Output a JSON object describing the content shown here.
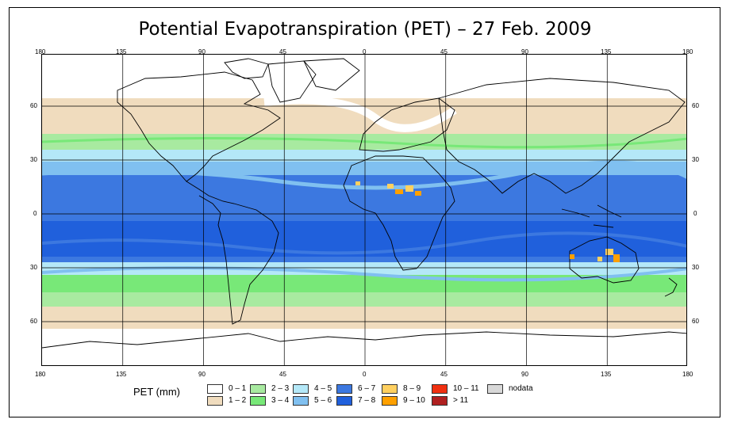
{
  "title": "Potential Evapotranspiration (PET) – 27 Feb. 2009",
  "longitude_ticks": [
    "180",
    "135",
    "90",
    "45",
    "0",
    "45",
    "90",
    "135",
    "180"
  ],
  "latitude_ticks": [
    "60",
    "30",
    "0",
    "30",
    "60"
  ],
  "legend": {
    "title": "PET (mm)",
    "classes": [
      {
        "label": "0 – 1",
        "color": "#ffffff"
      },
      {
        "label": "1 – 2",
        "color": "#f0dcbe"
      },
      {
        "label": "2 – 3",
        "color": "#a8eaa0"
      },
      {
        "label": "3 – 4",
        "color": "#78e878"
      },
      {
        "label": "4 – 5",
        "color": "#b4e8f8"
      },
      {
        "label": "5 – 6",
        "color": "#80c0f0"
      },
      {
        "label": "6 – 7",
        "color": "#3c78e0"
      },
      {
        "label": "7 – 8",
        "color": "#2060dc"
      },
      {
        "label": "8 – 9",
        "color": "#ffd060"
      },
      {
        "label": "9 – 10",
        "color": "#ffa000"
      },
      {
        "label": "10 – 11",
        "color": "#f03010"
      },
      {
        "label": "> 11",
        "color": "#b02020"
      },
      {
        "label": "nodata",
        "color": "#d8d8d8"
      }
    ]
  }
}
